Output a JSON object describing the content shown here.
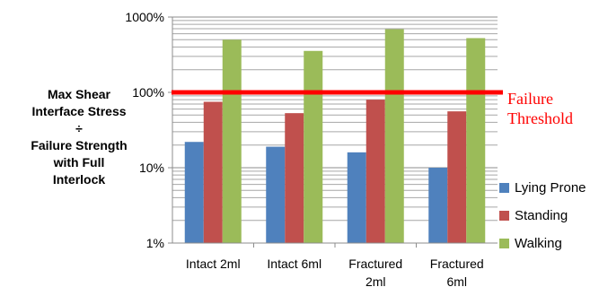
{
  "chart_data": {
    "type": "bar",
    "scale": "log",
    "ylim": [
      1,
      1000
    ],
    "grid": true,
    "y_ticks": [
      {
        "value": 1,
        "label": "1%"
      },
      {
        "value": 10,
        "label": "10%"
      },
      {
        "value": 100,
        "label": "100%"
      },
      {
        "value": 1000,
        "label": "1000%"
      }
    ],
    "ylabel_lines": [
      "Max Shear",
      "Interface Stress",
      "÷",
      "Failure Strength",
      "with Full",
      "Interlock"
    ],
    "categories": [
      {
        "lines": [
          "Intact 2ml"
        ]
      },
      {
        "lines": [
          "Intact 6ml"
        ]
      },
      {
        "lines": [
          "Fractured",
          "2ml"
        ]
      },
      {
        "lines": [
          "Fractured",
          "6ml"
        ]
      }
    ],
    "series": [
      {
        "name": "Lying Prone",
        "color": "#4f81bd",
        "values": [
          22,
          19,
          16,
          10
        ]
      },
      {
        "name": "Standing",
        "color": "#c0504d",
        "values": [
          75,
          53,
          80,
          56
        ]
      },
      {
        "name": "Walking",
        "color": "#9bbb59",
        "values": [
          500,
          355,
          690,
          525
        ]
      }
    ],
    "threshold": {
      "value": 100,
      "color": "#ff0000",
      "label_lines": [
        "Failure",
        "Threshold"
      ]
    },
    "legend_position": "right"
  }
}
